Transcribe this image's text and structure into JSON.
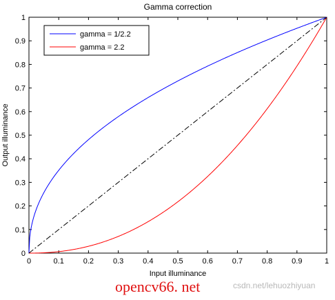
{
  "chart_data": {
    "type": "line",
    "title": "Gamma correction",
    "xlabel": "Input illuminance",
    "ylabel": "Output illuminance",
    "xlim": [
      0,
      1
    ],
    "ylim": [
      0,
      1
    ],
    "xticks": [
      "0",
      "0.1",
      "0.2",
      "0.3",
      "0.4",
      "0.5",
      "0.6",
      "0.7",
      "0.8",
      "0.9",
      "1"
    ],
    "yticks": [
      "0",
      "0.1",
      "0.2",
      "0.3",
      "0.4",
      "0.5",
      "0.6",
      "0.7",
      "0.8",
      "0.9",
      "1"
    ],
    "grid": false,
    "legend_position": "top-left",
    "series": [
      {
        "name": "gamma = 1/2.2",
        "color": "#0000ff",
        "line_style": "solid",
        "gamma": 0.4545,
        "x": [
          0,
          0.01,
          0.02,
          0.05,
          0.1,
          0.2,
          0.3,
          0.4,
          0.5,
          0.6,
          0.7,
          0.8,
          0.9,
          1.0
        ],
        "y": [
          0,
          0.123,
          0.169,
          0.256,
          0.351,
          0.481,
          0.578,
          0.66,
          0.73,
          0.793,
          0.85,
          0.904,
          0.953,
          1.0
        ]
      },
      {
        "name": "gamma = 2.2",
        "color": "#ff0000",
        "line_style": "solid",
        "gamma": 2.2,
        "x": [
          0,
          0.1,
          0.2,
          0.3,
          0.4,
          0.5,
          0.6,
          0.7,
          0.8,
          0.9,
          1.0
        ],
        "y": [
          0,
          0.006,
          0.029,
          0.071,
          0.133,
          0.218,
          0.325,
          0.456,
          0.612,
          0.793,
          1.0
        ]
      },
      {
        "color": "#000000",
        "line_style": "dash-dot",
        "x": [
          0,
          1
        ],
        "y": [
          0,
          1
        ]
      }
    ]
  },
  "watermark": {
    "main": "opencv66. net",
    "url": "csdn.net/lehuozhiyuan",
    "color": "#e01010"
  }
}
